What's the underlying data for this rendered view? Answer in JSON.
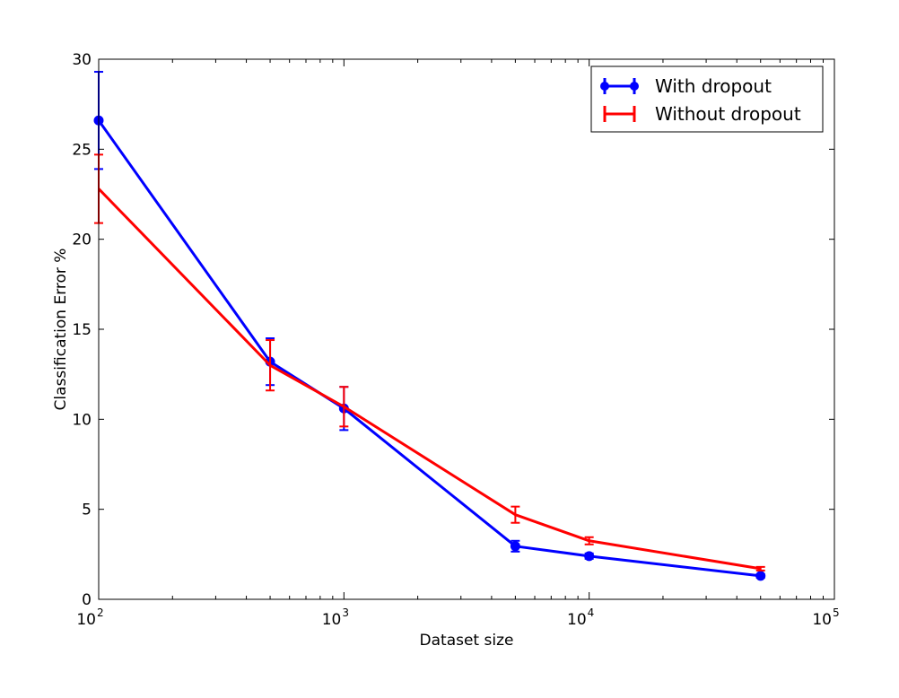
{
  "chart_data": {
    "type": "line",
    "xlabel": "Dataset size",
    "ylabel": "Classification Error %",
    "x_scale": "log",
    "xlim": [
      100,
      100000
    ],
    "ylim": [
      0,
      30
    ],
    "x_ticks": [
      100,
      1000,
      10000,
      100000
    ],
    "x_tick_base": "10",
    "x_tick_exponents": [
      "2",
      "3",
      "4",
      "5"
    ],
    "y_ticks": [
      0,
      5,
      10,
      15,
      20,
      25,
      30
    ],
    "y_tick_labels": [
      "0",
      "5",
      "10",
      "15",
      "20",
      "25",
      "30"
    ],
    "grid": false,
    "legend_position": "top-right",
    "series": [
      {
        "name": "With dropout",
        "color": "#0000ff",
        "marker": "circle",
        "x": [
          100,
          500,
          1000,
          5000,
          10000,
          50000
        ],
        "y": [
          26.6,
          13.2,
          10.6,
          2.95,
          2.4,
          1.3
        ],
        "err": [
          2.7,
          1.3,
          1.2,
          0.3,
          0.15,
          0.1
        ]
      },
      {
        "name": "Without dropout",
        "color": "#ff0000",
        "marker": "none",
        "x": [
          100,
          500,
          1000,
          5000,
          10000,
          50000
        ],
        "y": [
          22.8,
          13.0,
          10.7,
          4.7,
          3.25,
          1.7
        ],
        "err": [
          1.9,
          1.4,
          1.1,
          0.45,
          0.2,
          0.1
        ]
      }
    ]
  }
}
